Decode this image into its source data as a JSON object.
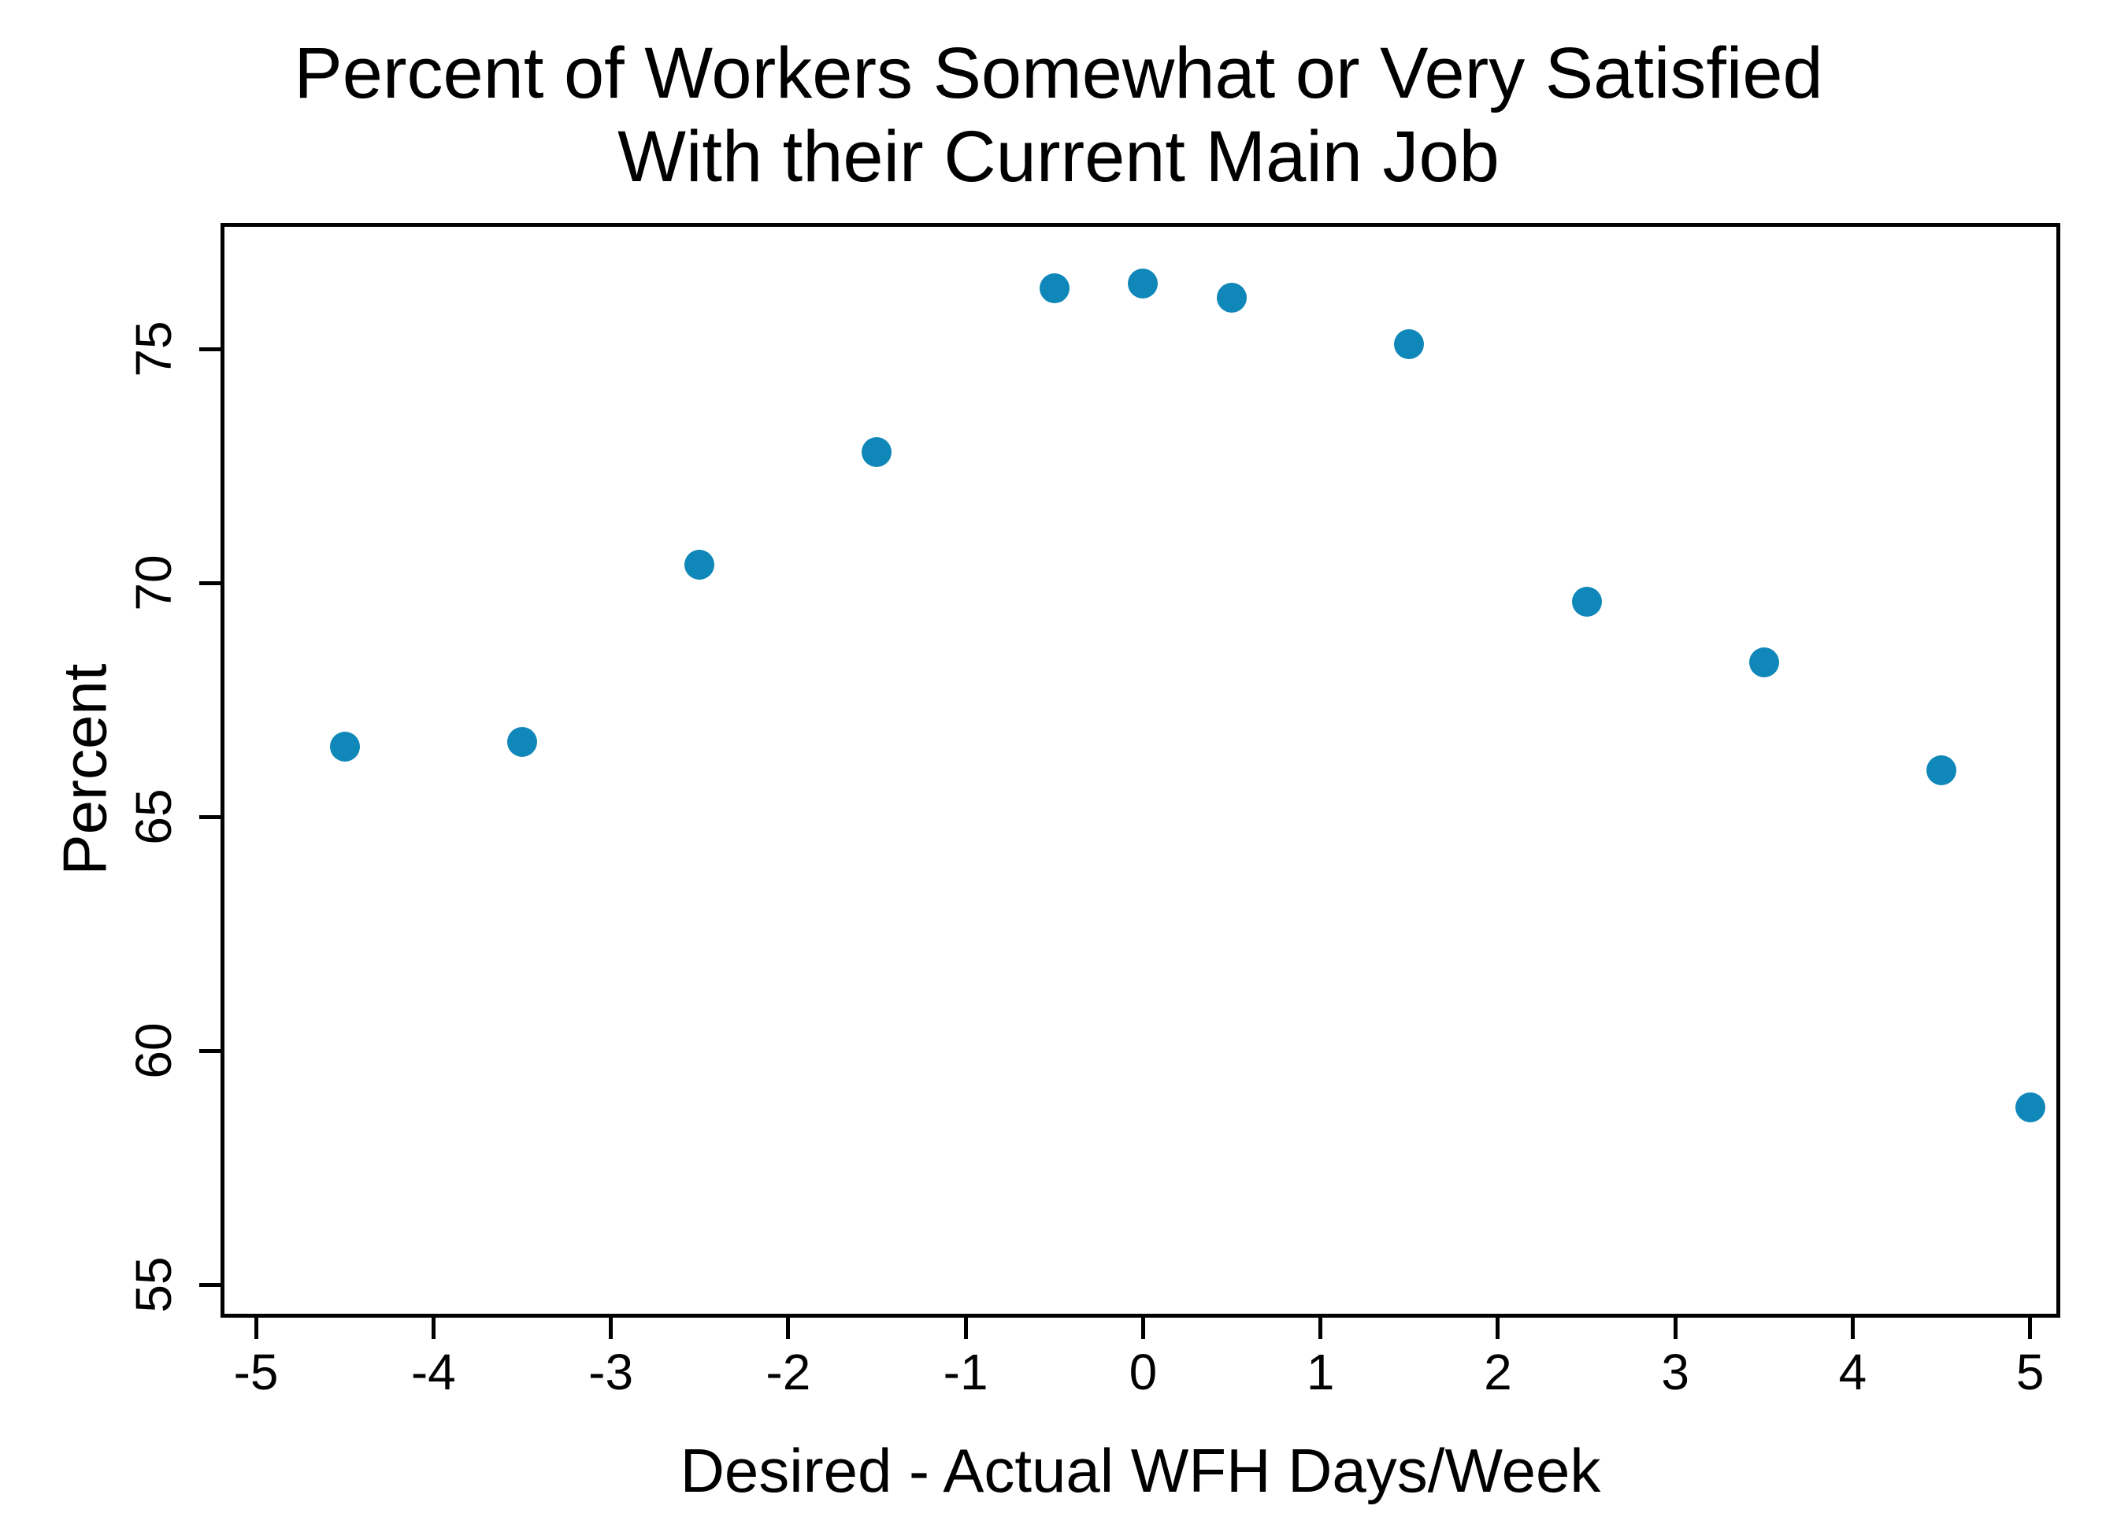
{
  "chart_data": {
    "type": "scatter",
    "title_line1": "Percent of Workers Somewhat or Very Satisfied",
    "title_line2": "With their Current Main Job",
    "xlabel": "Desired - Actual WFH Days/Week",
    "ylabel": "Percent",
    "points": [
      {
        "x": -4.5,
        "y": 66.5
      },
      {
        "x": -3.5,
        "y": 66.6
      },
      {
        "x": -2.5,
        "y": 70.4
      },
      {
        "x": -1.5,
        "y": 72.8
      },
      {
        "x": -0.5,
        "y": 76.3
      },
      {
        "x": 0,
        "y": 76.4
      },
      {
        "x": 0.5,
        "y": 76.1
      },
      {
        "x": 1.5,
        "y": 75.1
      },
      {
        "x": 2.5,
        "y": 69.6
      },
      {
        "x": 3.5,
        "y": 68.3
      },
      {
        "x": 4.5,
        "y": 66.0
      },
      {
        "x": 5,
        "y": 58.8
      }
    ],
    "x_ticks": [
      -5,
      -4,
      -3,
      -2,
      -1,
      0,
      1,
      2,
      3,
      4,
      5
    ],
    "y_ticks": [
      55,
      60,
      65,
      70,
      75
    ],
    "xlim": [
      -5.2,
      5.17
    ],
    "ylim": [
      54.3,
      77.7
    ],
    "grid": false,
    "legend": "none",
    "marker_color": "#0f87b8",
    "frame_color": "#000000",
    "background_color": "#ffffff"
  }
}
